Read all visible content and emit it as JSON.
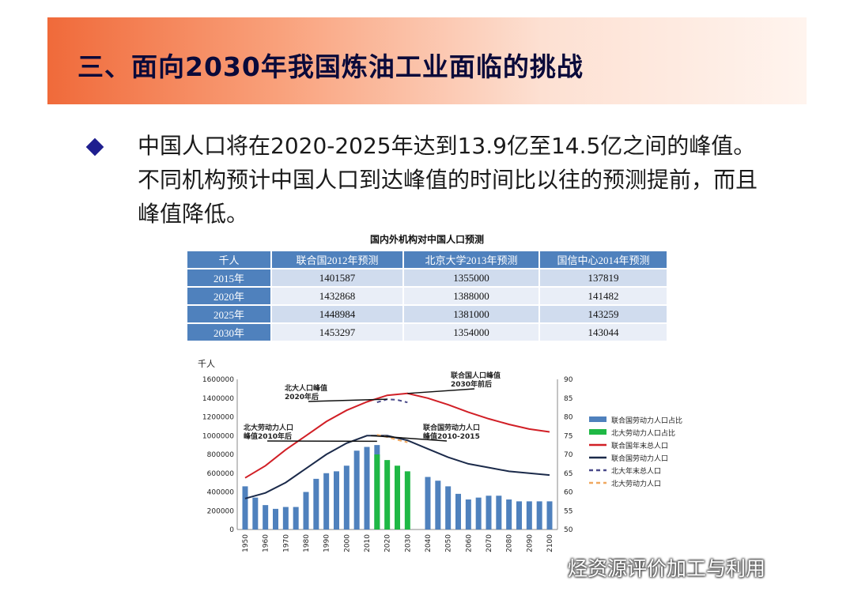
{
  "slide": {
    "title": "三、面向2030年我国炼油工业面临的挑战",
    "bullet": "中国人口将在2020-2025年达到13.9亿至14.5亿之间的峰值。不同机构预计中国人口到达峰值的时间比以往的预测提前，而且峰值降低。"
  },
  "table": {
    "title": "国内外机构对中国人口预测",
    "headers": [
      "千人",
      "联合国2012年预测",
      "北京大学2013年预测",
      "国信中心2014年预测"
    ],
    "rows": [
      [
        "2015年",
        "1401587",
        "1355000",
        "137819"
      ],
      [
        "2020年",
        "1432868",
        "1388000",
        "141482"
      ],
      [
        "2025年",
        "1448984",
        "1381000",
        "143259"
      ],
      [
        "2030年",
        "1453297",
        "1354000",
        "143044"
      ]
    ]
  },
  "watermark": "烃资源评价加工与利用",
  "colors": {
    "un_labor_ratio_bar": "#4f81bd",
    "pku_labor_ratio_bar": "#1fb845",
    "un_total_line": "#d11f26",
    "un_labor_line": "#1b2a4a",
    "pku_total_line": "#4a4a8a",
    "pku_labor_line": "#f0a860"
  },
  "chart_data": {
    "type": "bar",
    "ylabel": "千人",
    "ylim": [
      0,
      1600000
    ],
    "yticks": [
      0,
      200000,
      400000,
      600000,
      800000,
      1000000,
      1200000,
      1400000,
      1600000
    ],
    "y2lim": [
      50,
      90
    ],
    "y2ticks": [
      50,
      55,
      60,
      65,
      70,
      75,
      80,
      85,
      90
    ],
    "xticks": [
      "1950",
      "1960",
      "1970",
      "1980",
      "1990",
      "2000",
      "2010",
      "2020",
      "2030",
      "2040",
      "2050",
      "2060",
      "2070",
      "2080",
      "2090",
      "2100"
    ],
    "x": [
      1950,
      1955,
      1960,
      1965,
      1970,
      1975,
      1980,
      1985,
      1990,
      1995,
      2000,
      2005,
      2010,
      2015,
      2020,
      2025,
      2030,
      2035,
      2040,
      2045,
      2050,
      2055,
      2060,
      2065,
      2070,
      2075,
      2080,
      2085,
      2090,
      2095,
      2100
    ],
    "series": [
      {
        "name": "联合国劳动力人口占比",
        "kind": "bar",
        "axis": "y2",
        "x": [
          1950,
          1955,
          1960,
          1965,
          1970,
          1975,
          1980,
          1985,
          1990,
          1995,
          2000,
          2005,
          2010,
          2015,
          2040,
          2045,
          2050,
          2055,
          2060,
          2065,
          2070,
          2075,
          2080,
          2085,
          2090,
          2095,
          2100
        ],
        "values": [
          61.5,
          58.5,
          56.5,
          55.5,
          56,
          56,
          60,
          63.5,
          65,
          65.5,
          67,
          71,
          72,
          72.5,
          64,
          63,
          61.5,
          59.5,
          58,
          58.5,
          59,
          59,
          58,
          57.5,
          57.5,
          57.5,
          57.5
        ]
      },
      {
        "name": "北大劳动力人口占比",
        "kind": "bar",
        "axis": "y2",
        "x": [
          2015,
          2020,
          2025,
          2030
        ],
        "values": [
          70,
          68.5,
          67,
          65.5
        ]
      },
      {
        "name": "联合国年末总人口",
        "kind": "line",
        "axis": "y",
        "x": [
          1950,
          1960,
          1970,
          1980,
          1990,
          2000,
          2010,
          2020,
          2030,
          2040,
          2050,
          2060,
          2070,
          2080,
          2090,
          2100
        ],
        "values": [
          550000,
          680000,
          850000,
          1000000,
          1150000,
          1270000,
          1360000,
          1430000,
          1450000,
          1400000,
          1330000,
          1250000,
          1180000,
          1120000,
          1070000,
          1040000
        ]
      },
      {
        "name": "联合国劳动力人口",
        "kind": "line",
        "axis": "y",
        "x": [
          1950,
          1960,
          1970,
          1980,
          1990,
          2000,
          2010,
          2020,
          2030,
          2040,
          2050,
          2060,
          2070,
          2080,
          2090,
          2100
        ],
        "values": [
          330000,
          390000,
          500000,
          650000,
          800000,
          920000,
          1000000,
          1000000,
          950000,
          860000,
          770000,
          700000,
          660000,
          620000,
          600000,
          580000
        ]
      },
      {
        "name": "北大年末总人口",
        "kind": "line",
        "axis": "y",
        "dashed": true,
        "x": [
          2015,
          2020,
          2025,
          2030
        ],
        "values": [
          1355000,
          1388000,
          1381000,
          1354000
        ]
      },
      {
        "name": "北大劳动力人口",
        "kind": "line",
        "axis": "y",
        "dashed": true,
        "x": [
          2015,
          2020,
          2025,
          2030
        ],
        "values": [
          1010000,
          985000,
          955000,
          930000
        ]
      }
    ],
    "annotations": [
      {
        "text": [
          "联合国人口峰值",
          "2030年前后"
        ],
        "x": 2030,
        "y": 1450000
      },
      {
        "text": [
          "北大人口峰值",
          "2020年后"
        ],
        "x": 2020,
        "y": 1388000
      },
      {
        "text": [
          "北大劳动力人口",
          "峰值2010年后"
        ],
        "x": 2015,
        "y": 940000
      },
      {
        "text": [
          "联合国劳动力人口",
          "峰值2010-2015"
        ],
        "x": 2012,
        "y": 1000000
      }
    ],
    "legend_position": "right"
  }
}
